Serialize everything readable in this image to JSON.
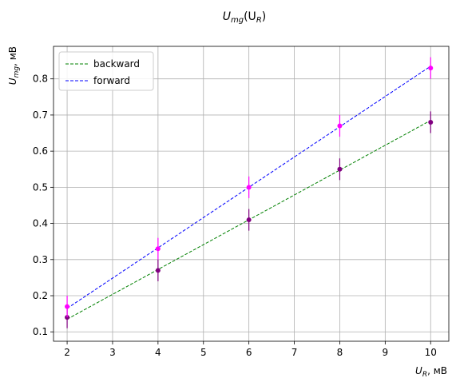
{
  "chart_data": {
    "type": "line",
    "title_main": "U",
    "title_sub": "mg",
    "title_rest": "(U",
    "title_sub2": "R",
    "title_end": ")",
    "xlabel_main": "U",
    "xlabel_sub": "R",
    "xlabel_rest": ", мВ",
    "ylabel_main": "U",
    "ylabel_sub": "mg",
    "ylabel_rest": ", мВ",
    "xlim": [
      1.7,
      10.4
    ],
    "ylim": [
      0.074,
      0.89
    ],
    "xticks": [
      2,
      3,
      4,
      5,
      6,
      7,
      8,
      9,
      10
    ],
    "yticks": [
      0.1,
      0.2,
      0.3,
      0.4,
      0.5,
      0.6,
      0.7,
      0.8
    ],
    "grid": true,
    "legend_position": "top-left",
    "series": [
      {
        "name": "backward",
        "color": "#008000",
        "style": "dashed",
        "fit_line": {
          "x": [
            2,
            10
          ],
          "y": [
            0.135,
            0.685
          ]
        },
        "points": {
          "color": "#800080",
          "x": [
            2,
            4,
            6,
            8,
            10
          ],
          "y": [
            0.14,
            0.27,
            0.41,
            0.55,
            0.68
          ],
          "yerr": [
            0.03,
            0.03,
            0.03,
            0.03,
            0.03
          ]
        }
      },
      {
        "name": "forward",
        "color": "#0000ff",
        "style": "dashed",
        "fit_line": {
          "x": [
            2,
            10
          ],
          "y": [
            0.165,
            0.835
          ]
        },
        "points": {
          "color": "#ff00ff",
          "x": [
            2,
            4,
            6,
            8,
            10
          ],
          "y": [
            0.17,
            0.33,
            0.5,
            0.67,
            0.83
          ],
          "yerr": [
            0.03,
            0.03,
            0.03,
            0.03,
            0.03
          ]
        }
      }
    ]
  }
}
